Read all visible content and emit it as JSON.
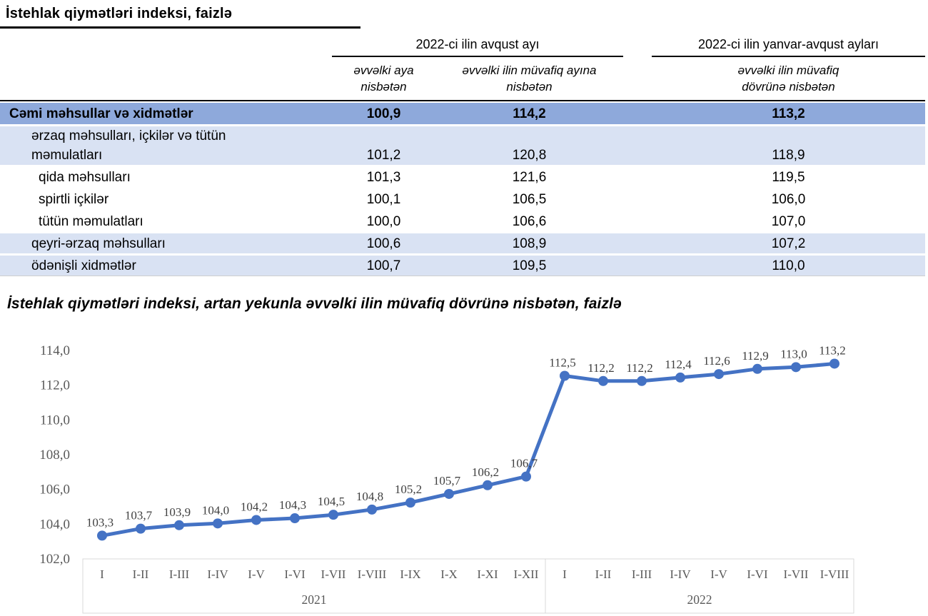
{
  "table": {
    "title": "İstehlak qiymətləri indeksi, faizlə",
    "col_groups": [
      {
        "label": "2022-ci ilin avqust ayı"
      },
      {
        "label": "2022-ci ilin yanvar-avqust ayları"
      }
    ],
    "columns": [
      {
        "label": "əvvəlki aya nisbətən"
      },
      {
        "label": "əvvəlki ilin müvafiq ayına nisbətən"
      },
      {
        "label": "əvvəlki ilin müvafiq dövrünə nisbətən"
      }
    ],
    "rows": [
      {
        "label": "Cəmi məhsullar və xidmətlər",
        "values": [
          "100,9",
          "114,2",
          "113,2"
        ],
        "style": "total",
        "indent": 0
      },
      {
        "label": "ərzaq məhsulları, içkilər və tütün məmulatları",
        "values": [
          "101,2",
          "120,8",
          "118,9"
        ],
        "style": "band twoline",
        "indent": 1
      },
      {
        "label": "qida məhsulları",
        "values": [
          "101,3",
          "121,6",
          "119,5"
        ],
        "style": "plain",
        "indent": 2
      },
      {
        "label": "spirtli içkilər",
        "values": [
          "100,1",
          "106,5",
          "106,0"
        ],
        "style": "plain",
        "indent": 2
      },
      {
        "label": "tütün məmulatları",
        "values": [
          "100,0",
          "106,6",
          "107,0"
        ],
        "style": "plain",
        "indent": 2
      },
      {
        "label": "qeyri-ərzaq məhsulları",
        "values": [
          "100,6",
          "108,9",
          "107,2"
        ],
        "style": "band",
        "indent": 1
      },
      {
        "label": "ödənişli xidmətlər",
        "values": [
          "100,7",
          "109,5",
          "110,0"
        ],
        "style": "band",
        "indent": 1
      }
    ]
  },
  "chart_data": {
    "type": "line",
    "title": "İstehlak qiymətləri indeksi, artan yekunla əvvəlki ilin müvafiq dövrünə nisbətən, faizlə",
    "categories": [
      "I",
      "I-II",
      "I-III",
      "I-IV",
      "I-V",
      "I-VI",
      "I-VII",
      "I-VIII",
      "I-IX",
      "I-X",
      "I-XI",
      "I-XII",
      "I",
      "I-II",
      "I-III",
      "I-IV",
      "I-V",
      "I-VI",
      "I-VII",
      "I-VIII"
    ],
    "year_groups": [
      {
        "label": "2021",
        "span": 12
      },
      {
        "label": "2022",
        "span": 8
      }
    ],
    "values": [
      103.3,
      103.7,
      103.9,
      104.0,
      104.2,
      104.3,
      104.5,
      104.8,
      105.2,
      105.7,
      106.2,
      106.7,
      112.5,
      112.2,
      112.2,
      112.4,
      112.6,
      112.9,
      113.0,
      113.2
    ],
    "point_labels": [
      "103,3",
      "103,7",
      "103,9",
      "104,0",
      "104,2",
      "104,3",
      "104,5",
      "104,8",
      "105,2",
      "105,7",
      "106,2",
      "106,7",
      "112,5",
      "112,2",
      "112,2",
      "112,4",
      "112,6",
      "112,9",
      "113,0",
      "113,2"
    ],
    "ylim": [
      102,
      114
    ],
    "ytick_step": 2,
    "yticks": [
      "102,0",
      "104,0",
      "106,0",
      "108,0",
      "110,0",
      "112,0",
      "114,0"
    ],
    "grid": "off",
    "legend": "none",
    "series_name": "İstehlak qiymətləri indeksi"
  },
  "colors": {
    "total_row_bg": "#8EA9DB",
    "band_row_bg": "#D9E2F3",
    "line": "#4472C4",
    "axis_text": "#595959",
    "data_label_text": "#3F3F3F",
    "axis_box_border": "#D9D9D9",
    "rule": "#000000"
  }
}
